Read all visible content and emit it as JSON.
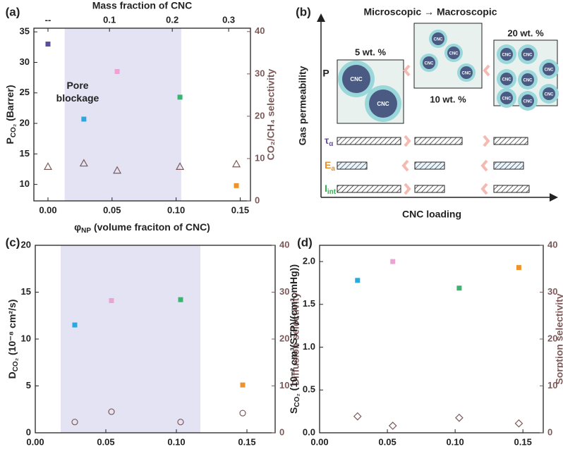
{
  "chart_data": [
    {
      "type": "scatter",
      "panel": "(a)",
      "x": [
        0,
        0.028,
        0.054,
        0.103,
        0.147
      ],
      "xlim": [
        -0.011,
        0.158
      ],
      "xticks": [
        {
          "value": 0,
          "label": "0.00"
        },
        {
          "value": 0.05,
          "label": "0.05"
        },
        {
          "value": 0.1,
          "label": "0.10"
        },
        {
          "value": 0.15,
          "label": "0.15"
        }
      ],
      "ylim": [
        7.3,
        35.6
      ],
      "yticks": [
        10,
        15,
        20,
        25,
        30,
        35
      ],
      "y2lim": [
        0,
        40.8
      ],
      "y2ticks": [
        0,
        10,
        20,
        30,
        40
      ],
      "x2label": "Mass fraction of CNC",
      "x2ticks": [
        {
          "value": 0,
          "label": "--"
        },
        {
          "value": 0.048,
          "label": "0.1"
        },
        {
          "value": 0.097,
          "label": "0.2"
        },
        {
          "value": 0.141,
          "label": "0.3"
        }
      ],
      "xlabel": {
        "text": "φ",
        "sub": "NP",
        "rest": " (volume fraciton of CNC)"
      },
      "ylabel": {
        "text": "P",
        "sub": "CO₂",
        "rest": " (Barrer)"
      },
      "y2label": "CO₂/CH₄ selectivity",
      "shade": [
        0.013,
        0.104
      ],
      "annotation": "Pore\nblockage",
      "series": [
        {
          "marker": "square",
          "colors": [
            "#5b4ea0",
            "#2aa9e0",
            "#eaa3d3",
            "#3cb371",
            "#f0922b"
          ],
          "values": [
            33,
            20.7,
            28.5,
            24.3,
            9.8
          ]
        },
        {
          "marker": "triangle",
          "color": "#7d5a5a",
          "axis": "y2",
          "values": [
            8.1,
            8.9,
            7.2,
            8.1,
            8.7
          ]
        }
      ]
    },
    {
      "type": "scatter",
      "panel": "(c)",
      "x": [
        0.028,
        0.054,
        0.103,
        0.147
      ],
      "xlim": [
        0,
        0.17
      ],
      "xticks": [
        {
          "value": 0,
          "label": "0.00"
        },
        {
          "value": 0.05,
          "label": "0.05"
        },
        {
          "value": 0.1,
          "label": "0.10"
        },
        {
          "value": 0.15,
          "label": "0.15"
        }
      ],
      "ylim": [
        0,
        20
      ],
      "yticks": [
        0,
        5,
        10,
        15,
        20
      ],
      "y2lim": [
        0,
        40
      ],
      "y2ticks": [
        0,
        10,
        20,
        30,
        40
      ],
      "xlabel": {
        "text": "φ",
        "sub": "NP",
        "rest": " (volume fraction of CNC)"
      },
      "ylabel": {
        "text": "D",
        "sub": "CO₂",
        "rest": " (10⁻⁸ cm²/s)"
      },
      "y2label": "Diffusion selectivity",
      "shade": [
        0.018,
        0.117
      ],
      "series": [
        {
          "marker": "square",
          "colors": [
            "#2aa9e0",
            "#eaa3d3",
            "#3cb371",
            "#f0922b"
          ],
          "values": [
            11.5,
            14.1,
            14.2,
            5.1
          ]
        },
        {
          "marker": "circle",
          "color": "#7d5a5a",
          "axis": "y2",
          "values": [
            2.3,
            4.5,
            2.3,
            4.2
          ]
        }
      ]
    },
    {
      "type": "scatter",
      "panel": "(d)",
      "x": [
        0.028,
        0.054,
        0.103,
        0.147
      ],
      "xlim": [
        0,
        0.165
      ],
      "xticks": [
        {
          "value": 0,
          "label": "0.00"
        },
        {
          "value": 0.05,
          "label": "0.05"
        },
        {
          "value": 0.1,
          "label": "0.10"
        },
        {
          "value": 0.15,
          "label": "0.15"
        }
      ],
      "ylim": [
        0,
        2.19
      ],
      "yticks": [
        {
          "value": 0,
          "label": "0.0"
        },
        0.5,
        {
          "value": 1,
          "label": "1.0"
        },
        1.5,
        {
          "value": 2,
          "label": "2.0"
        }
      ],
      "y2lim": [
        0,
        40
      ],
      "y2ticks": [
        0,
        10,
        20,
        30,
        40
      ],
      "xlabel": {
        "text": "φ",
        "sub": "NP",
        "rest": " (volume fraction of CNC)"
      },
      "ylabel": {
        "text": "S",
        "sub": "CO₂",
        "rest": " (10⁻² cm³(STP)/(cm³cmHg))"
      },
      "y2label": "Sorption selectivity",
      "series": [
        {
          "marker": "square",
          "colors": [
            "#2aa9e0",
            "#eaa3d3",
            "#3cb371",
            "#f0922b"
          ],
          "values": [
            1.78,
            2.0,
            1.69,
            1.93
          ]
        },
        {
          "marker": "diamond",
          "color": "#7d5a5a",
          "axis": "y2",
          "values": [
            3.5,
            1.5,
            3.2,
            2.0
          ]
        }
      ]
    }
  ],
  "diagram": {
    "panel": "(b)",
    "title": "Microscopic → Macroscopic",
    "y_axis": "Gas permeability",
    "x_axis": "CNC loading",
    "property": "P",
    "boxes": [
      {
        "label": "5 wt. %",
        "particles": [
          "CNC",
          "CNC"
        ]
      },
      {
        "label": "10 wt. %",
        "particles": [
          "CNC",
          "CNC",
          "CNC",
          "CNC"
        ]
      },
      {
        "label": "20 wt. %",
        "particles": [
          "CNC",
          "CNC",
          "CNC",
          "CNC",
          "CNC",
          "CNC",
          "CNC",
          "CNC"
        ]
      }
    ],
    "rows": [
      {
        "symbol": "τ",
        "sub": "α"
      },
      {
        "symbol": "E",
        "sub": "a"
      },
      {
        "symbol": "I",
        "sub": "int"
      }
    ]
  }
}
